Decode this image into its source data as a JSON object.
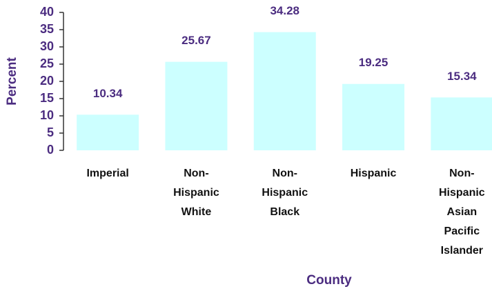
{
  "chart_data": {
    "type": "bar",
    "categories": [
      "Imperial",
      "Non-Hispanic White",
      "Non-Hispanic Black",
      "Hispanic",
      "Non-Hispanic Asian Pacific Islander"
    ],
    "values": [
      10.34,
      25.67,
      34.28,
      19.25,
      15.34
    ],
    "color": "#ccffff",
    "x_label": "County",
    "y_label": "Percent",
    "ylim": [
      0,
      40
    ],
    "yticks": [
      0,
      5,
      10,
      15,
      20,
      25,
      30,
      35,
      40
    ],
    "grid": false
  }
}
